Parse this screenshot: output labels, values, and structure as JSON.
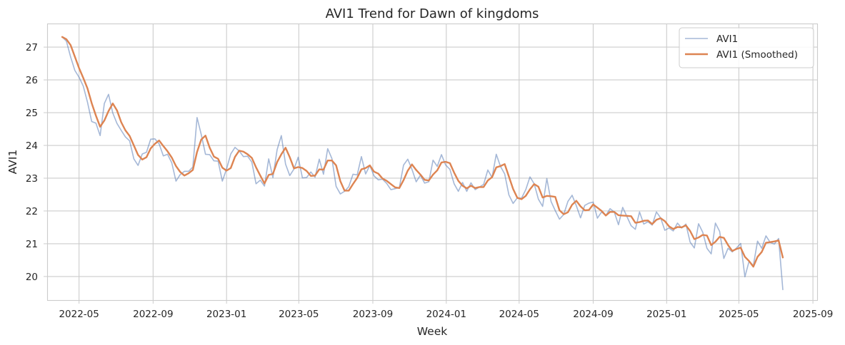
{
  "chart_data": {
    "type": "line",
    "title": "AVI1 Trend for Dawn of kingdoms",
    "xlabel": "Week",
    "ylabel": "AVI1",
    "grid": true,
    "legend_position": "top-right",
    "xlim": [
      "2022-03-09",
      "2025-09-08"
    ],
    "ylim": [
      19.28,
      27.72
    ],
    "x_ticks": [
      "2022-05",
      "2022-09",
      "2023-01",
      "2023-05",
      "2023-09",
      "2024-01",
      "2024-05",
      "2024-09",
      "2025-01",
      "2025-05",
      "2025-09"
    ],
    "y_ticks": [
      20,
      21,
      22,
      23,
      24,
      25,
      26,
      27
    ],
    "colors": {
      "raw": "#4c72b0",
      "smoothed": "#dd8452",
      "grid": "#cccccc"
    },
    "x_start": "2022-04-03",
    "x_step_days": 7,
    "series": [
      {
        "name": "AVI1",
        "values": [
          27.31,
          27.18,
          26.7,
          26.29,
          26.08,
          25.81,
          25.32,
          24.73,
          24.68,
          24.3,
          25.28,
          25.56,
          24.99,
          24.67,
          24.46,
          24.26,
          24.14,
          23.59,
          23.39,
          23.74,
          23.79,
          24.19,
          24.2,
          24.05,
          23.68,
          23.73,
          23.47,
          22.91,
          23.11,
          23.21,
          23.21,
          23.34,
          24.85,
          24.33,
          23.73,
          23.72,
          23.53,
          23.52,
          22.91,
          23.28,
          23.74,
          23.94,
          23.83,
          23.66,
          23.67,
          23.49,
          22.83,
          22.94,
          22.76,
          23.59,
          23.02,
          23.87,
          24.3,
          23.43,
          23.08,
          23.28,
          23.64,
          23.01,
          23.02,
          23.19,
          23.03,
          23.58,
          23.12,
          23.9,
          23.6,
          22.75,
          22.52,
          22.6,
          22.74,
          23.12,
          23.1,
          23.66,
          23.13,
          23.39,
          23.07,
          22.95,
          22.97,
          22.84,
          22.65,
          22.68,
          22.71,
          23.4,
          23.58,
          23.27,
          22.89,
          23.09,
          22.85,
          22.89,
          23.55,
          23.36,
          23.72,
          23.4,
          23.27,
          22.83,
          22.6,
          22.87,
          22.6,
          22.86,
          22.65,
          22.73,
          22.81,
          23.25,
          23.02,
          23.73,
          23.36,
          23.13,
          22.49,
          22.23,
          22.4,
          22.39,
          22.65,
          23.04,
          22.83,
          22.36,
          22.14,
          22.99,
          22.29,
          22.01,
          21.75,
          21.89,
          22.29,
          22.48,
          22.16,
          21.79,
          22.17,
          22.24,
          22.27,
          21.78,
          21.97,
          21.86,
          22.07,
          21.97,
          21.58,
          22.11,
          21.83,
          21.55,
          21.44,
          21.97,
          21.6,
          21.67,
          21.57,
          21.97,
          21.79,
          21.41,
          21.48,
          21.39,
          21.63,
          21.48,
          21.6,
          21.05,
          20.87,
          21.61,
          21.35,
          20.86,
          20.69,
          21.63,
          21.38,
          20.55,
          20.86,
          20.75,
          20.87,
          21.01,
          19.99,
          20.47,
          20.33,
          21.08,
          20.86,
          21.24,
          21.04,
          20.99,
          21.16,
          19.6
        ]
      },
      {
        "name": "AVI1 (Smoothed)",
        "values": [
          27.31,
          27.24,
          27.06,
          26.71,
          26.36,
          26.06,
          25.74,
          25.29,
          24.91,
          24.57,
          24.76,
          25.05,
          25.28,
          25.07,
          24.71,
          24.46,
          24.29,
          24.0,
          23.71,
          23.57,
          23.64,
          23.91,
          24.05,
          24.15,
          23.98,
          23.82,
          23.63,
          23.37,
          23.19,
          23.08,
          23.15,
          23.25,
          23.8,
          24.18,
          24.3,
          23.93,
          23.66,
          23.59,
          23.32,
          23.23,
          23.31,
          23.65,
          23.84,
          23.81,
          23.73,
          23.62,
          23.33,
          23.08,
          22.84,
          23.1,
          23.13,
          23.49,
          23.73,
          23.93,
          23.64,
          23.3,
          23.34,
          23.31,
          23.22,
          23.07,
          23.08,
          23.27,
          23.26,
          23.54,
          23.54,
          23.39,
          22.91,
          22.62,
          22.62,
          22.82,
          23.01,
          23.27,
          23.31,
          23.39,
          23.2,
          23.14,
          22.99,
          22.92,
          22.82,
          22.72,
          22.7,
          22.94,
          23.23,
          23.42,
          23.25,
          23.11,
          22.95,
          22.93,
          23.11,
          23.24,
          23.48,
          23.5,
          23.46,
          23.17,
          22.92,
          22.77,
          22.69,
          22.77,
          22.7,
          22.73,
          22.73,
          22.93,
          23.03,
          23.33,
          23.37,
          23.43,
          23.05,
          22.67,
          22.4,
          22.36,
          22.46,
          22.66,
          22.82,
          22.74,
          22.41,
          22.46,
          22.45,
          22.43,
          22.02,
          21.9,
          21.96,
          22.19,
          22.31,
          22.14,
          22.02,
          22.03,
          22.2,
          22.1,
          22.0,
          21.86,
          21.97,
          21.97,
          21.87,
          21.86,
          21.85,
          21.84,
          21.64,
          21.66,
          21.7,
          21.71,
          21.6,
          21.73,
          21.78,
          21.69,
          21.53,
          21.45,
          21.51,
          21.5,
          21.56,
          21.39,
          21.14,
          21.19,
          21.27,
          21.25,
          20.96,
          21.06,
          21.21,
          21.18,
          20.96,
          20.78,
          20.84,
          20.88,
          20.6,
          20.47,
          20.3,
          20.6,
          20.75,
          21.03,
          21.05,
          21.07,
          21.1,
          20.58
        ]
      }
    ]
  }
}
